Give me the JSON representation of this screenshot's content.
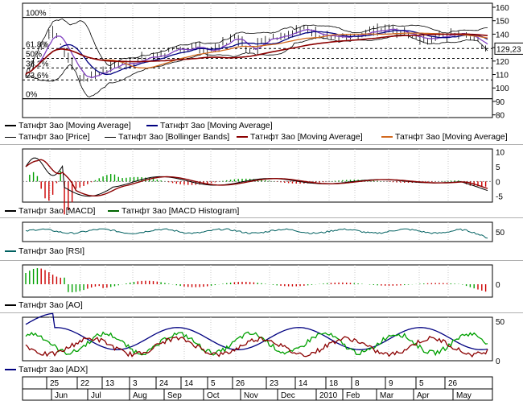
{
  "security": "Татнфт 3ао",
  "current_price_label": "129,23",
  "price_panel": {
    "y_ticks": [
      "160",
      "150",
      "140",
      "130",
      "120",
      "110",
      "100",
      "90",
      "80"
    ],
    "y_tick_values": [
      160,
      150,
      140,
      130,
      120,
      110,
      100,
      90,
      80
    ],
    "y_range": [
      78,
      163
    ],
    "fib_labels": [
      "100%",
      "61.8%",
      "50%",
      "38.2%",
      "23.6%",
      "0%"
    ],
    "fib_values": [
      152.5,
      129.3,
      122.0,
      114.9,
      106.0,
      92.0
    ],
    "legend": [
      {
        "label": "Татнфт 3ао [Moving Average]",
        "color": "#000000"
      },
      {
        "label": "Татнфт 3ао [Moving Average]",
        "color": "#000080"
      },
      {
        "label": "Татнфт 3ао [Price]",
        "color": "#000000"
      },
      {
        "label": "Татнфт 3ао [Bollinger Bands]",
        "color": "#000000"
      },
      {
        "label": "Татнфт 3ао [Moving Average]",
        "color": "#8b0000"
      },
      {
        "label": "Татнфт 3ао [Moving Average]",
        "color": "#d2691e"
      }
    ]
  },
  "macd_panel": {
    "y_ticks": [
      "10",
      "5",
      "0",
      "-5"
    ],
    "y_tick_values": [
      10,
      5,
      0,
      -5
    ],
    "y_range": [
      -7,
      11
    ],
    "legend": [
      {
        "label": "Татнфт 3ао [MACD]",
        "color": "#000000"
      },
      {
        "label": "Татнфт 3ао [MACD Histogram]",
        "color": "#006400"
      }
    ]
  },
  "rsi_panel": {
    "y_ticks": [
      "50"
    ],
    "y_tick_values": [
      50
    ],
    "y_range": [
      20,
      80
    ],
    "legend": [
      {
        "label": "Татнфт 3ао [RSI]",
        "color": "#006060"
      }
    ]
  },
  "ao_panel": {
    "y_ticks": [
      "0"
    ],
    "y_tick_values": [
      0
    ],
    "y_range": [
      -8,
      12
    ],
    "legend": [
      {
        "label": "Татнфт 3ао [AO]",
        "color": "#000000"
      }
    ]
  },
  "adx_panel": {
    "y_ticks": [
      "50",
      "0"
    ],
    "y_tick_values": [
      50,
      0
    ],
    "y_range": [
      0,
      55
    ],
    "legend": [
      {
        "label": "Татнфт 3ао [ADX]",
        "color": "#000080"
      }
    ]
  },
  "time_axis": {
    "day_labels": [
      "25",
      "22",
      "13",
      "3",
      "24",
      "14",
      "5",
      "26",
      "23",
      "14",
      "18",
      "8",
      "9",
      "5",
      "26"
    ],
    "month_labels": [
      "Jun",
      "Jul",
      "Aug",
      "Sep",
      "Oct",
      "Nov",
      "Dec",
      "2010",
      "Feb",
      "Mar",
      "Apr",
      "May"
    ]
  },
  "colors": {
    "dark_blue": "#000080",
    "dark_red": "#8b0000",
    "orange": "#d2691e",
    "purple": "#8040c0",
    "green": "#00a000",
    "red": "#cc0000",
    "teal": "#006060"
  }
}
